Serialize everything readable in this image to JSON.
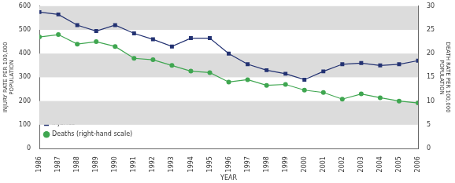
{
  "chart_data": {
    "type": "line",
    "x_label": "YEAR",
    "y_label": "INJURY RATE PER 100,000 POPULATION",
    "y2_label": "DEATH RATE PER 100,000 POPULATION",
    "categories": [
      "1986",
      "1987",
      "1988",
      "1989",
      "1990",
      "1991",
      "1992",
      "1993",
      "1994",
      "1995",
      "1996",
      "1997",
      "1998",
      "1999",
      "2000",
      "2001",
      "2002",
      "2003",
      "2004",
      "2005",
      "2006"
    ],
    "series": [
      {
        "name": "Injuries",
        "color": "#233272",
        "marker": "square",
        "values": [
          575,
          565,
          520,
          495,
          520,
          485,
          460,
          430,
          465,
          465,
          400,
          355,
          330,
          315,
          290,
          325,
          355,
          360,
          350,
          355,
          370
        ]
      },
      {
        "name": "Deaths (right-hand scale)",
        "color": "#3fa650",
        "marker": "circle",
        "axis": "y2",
        "values": [
          23.5,
          24,
          22,
          22.5,
          21.5,
          19,
          18.7,
          17.5,
          16.3,
          16,
          14,
          14.5,
          13.3,
          13.5,
          12.3,
          11.8,
          10.4,
          11.5,
          10.7,
          10,
          9.6
        ]
      }
    ],
    "ylim": [
      0,
      600
    ],
    "yticks": [
      0,
      100,
      200,
      300,
      400,
      500,
      600
    ],
    "y2lim": [
      0,
      30
    ],
    "y2ticks": [
      0,
      5,
      10,
      15,
      20,
      25,
      30
    ],
    "grid": true,
    "legend": "upper right"
  }
}
